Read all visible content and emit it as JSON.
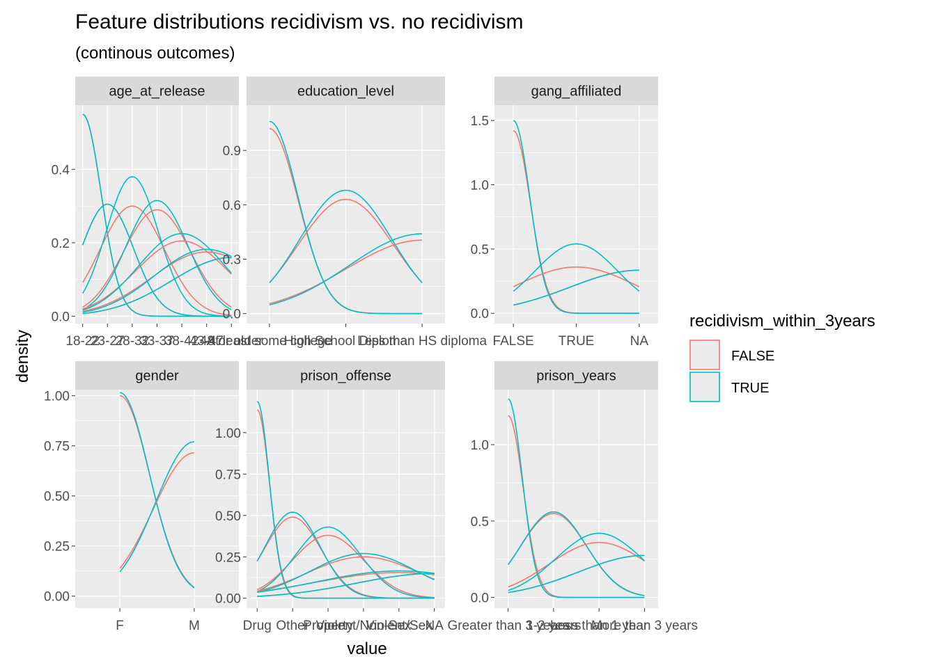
{
  "title": "Feature distributions recidivism vs. no recidivism",
  "subtitle": "(continous outcomes)",
  "xlabel": "value",
  "ylabel": "density",
  "legend": {
    "title": "recidivism_within_3years",
    "entries": [
      {
        "label": "FALSE",
        "color": "#F8766D"
      },
      {
        "label": "TRUE",
        "color": "#00BFC4"
      }
    ],
    "placement": "right"
  },
  "colors": {
    "panel_bg": "#EBEBEB",
    "grid": "#FFFFFF",
    "strip_bg": "#D9D9D9",
    "FALSE": "#F8766D",
    "TRUE": "#00BFC4"
  },
  "chart_data": [
    {
      "type": "line",
      "panel": "age_at_release",
      "categories": [
        "18-22",
        "23-27",
        "28-32",
        "33-37",
        "38-42",
        "43-47",
        "48 or older"
      ],
      "ylim": [
        -0.02,
        0.575
      ],
      "yticks": [
        "0.0",
        "0.2",
        "0.4"
      ],
      "ytick_values": [
        0,
        0.2,
        0.4
      ],
      "x_range": [
        1,
        7
      ],
      "series": [
        {
          "group": "FALSE",
          "mean": 1.0,
          "sd": 0.75,
          "height": 0.55
        },
        {
          "group": "TRUE",
          "mean": 1.0,
          "sd": 0.75,
          "height": 0.55
        },
        {
          "group": "FALSE",
          "mean": 2.0,
          "sd": 1.05,
          "height": 0.305
        },
        {
          "group": "TRUE",
          "mean": 2.0,
          "sd": 1.05,
          "height": 0.305
        },
        {
          "group": "FALSE",
          "mean": 3.0,
          "sd": 1.3,
          "height": 0.3
        },
        {
          "group": "TRUE",
          "mean": 3.0,
          "sd": 1.05,
          "height": 0.38
        },
        {
          "group": "FALSE",
          "mean": 4.0,
          "sd": 1.35,
          "height": 0.29
        },
        {
          "group": "TRUE",
          "mean": 4.0,
          "sd": 1.25,
          "height": 0.315
        },
        {
          "group": "FALSE",
          "mean": 5.0,
          "sd": 1.85,
          "height": 0.205
        },
        {
          "group": "TRUE",
          "mean": 5.0,
          "sd": 1.75,
          "height": 0.225
        },
        {
          "group": "FALSE",
          "mean": 6.0,
          "sd": 2.2,
          "height": 0.175
        },
        {
          "group": "TRUE",
          "mean": 6.0,
          "sd": 2.1,
          "height": 0.182
        },
        {
          "group": "FALSE",
          "mean": 7.0,
          "sd": 2.4,
          "height": 0.16
        },
        {
          "group": "TRUE",
          "mean": 7.0,
          "sd": 2.4,
          "height": 0.16
        }
      ]
    },
    {
      "type": "line",
      "panel": "education_level",
      "categories": [
        "At least some college",
        "High School Diploma",
        "Less than HS diploma"
      ],
      "ylim": [
        -0.055,
        1.15
      ],
      "yticks": [
        "0.0",
        "0.3",
        "0.6",
        "0.9"
      ],
      "ytick_values": [
        0,
        0.3,
        0.6,
        0.9
      ],
      "x_range": [
        1,
        3
      ],
      "series": [
        {
          "group": "FALSE",
          "mean": 1.0,
          "sd": 0.38,
          "height": 1.02
        },
        {
          "group": "TRUE",
          "mean": 1.0,
          "sd": 0.375,
          "height": 1.06
        },
        {
          "group": "FALSE",
          "mean": 2.0,
          "sd": 0.62,
          "height": 0.63
        },
        {
          "group": "TRUE",
          "mean": 2.0,
          "sd": 0.6,
          "height": 0.68
        },
        {
          "group": "FALSE",
          "mean": 3.0,
          "sd": 1.0,
          "height": 0.405
        },
        {
          "group": "TRUE",
          "mean": 3.0,
          "sd": 0.95,
          "height": 0.44
        }
      ]
    },
    {
      "type": "line",
      "panel": "gang_affiliated",
      "categories": [
        "FALSE",
        "TRUE",
        "NA"
      ],
      "ylim": [
        -0.08,
        1.62
      ],
      "yticks": [
        "0.0",
        "0.5",
        "1.0",
        "1.5"
      ],
      "ytick_values": [
        0,
        0.5,
        1.0,
        1.5
      ],
      "x_range": [
        1,
        3
      ],
      "series": [
        {
          "group": "FALSE",
          "mean": 1.0,
          "sd": 0.27,
          "height": 1.42
        },
        {
          "group": "TRUE",
          "mean": 1.0,
          "sd": 0.26,
          "height": 1.5
        },
        {
          "group": "FALSE",
          "mean": 2.0,
          "sd": 0.95,
          "height": 0.36
        },
        {
          "group": "TRUE",
          "mean": 2.0,
          "sd": 0.66,
          "height": 0.54
        },
        {
          "group": "FALSE",
          "mean": 3.0,
          "sd": 1.1,
          "height": 0.335
        },
        {
          "group": "TRUE",
          "mean": 3.0,
          "sd": 1.1,
          "height": 0.335
        }
      ]
    },
    {
      "type": "line",
      "panel": "gender",
      "categories": [
        "F",
        "M"
      ],
      "ylim": [
        -0.06,
        1.03
      ],
      "yticks": [
        "0.00",
        "0.25",
        "0.50",
        "0.75",
        "1.00"
      ],
      "ytick_values": [
        0,
        0.25,
        0.5,
        0.75,
        1.0
      ],
      "x_range": [
        1,
        2
      ],
      "series": [
        {
          "group": "FALSE",
          "mean": 1.0,
          "sd": 0.4,
          "height": 1.0
        },
        {
          "group": "TRUE",
          "mean": 1.0,
          "sd": 0.395,
          "height": 1.015
        },
        {
          "group": "FALSE",
          "mean": 2.0,
          "sd": 0.552,
          "height": 0.715
        },
        {
          "group": "TRUE",
          "mean": 2.0,
          "sd": 0.52,
          "height": 0.77
        }
      ]
    },
    {
      "type": "line",
      "panel": "prison_offense",
      "categories": [
        "Drug",
        "Other",
        "Property",
        "Violent/Non-Sex",
        "Violent/Sex",
        "NA"
      ],
      "ylim": [
        -0.06,
        1.26
      ],
      "yticks": [
        "0.00",
        "0.25",
        "0.50",
        "0.75",
        "1.00"
      ],
      "ytick_values": [
        0,
        0.25,
        0.5,
        0.75,
        1.0
      ],
      "x_range": [
        1,
        6
      ],
      "series": [
        {
          "group": "FALSE",
          "mean": 1.0,
          "sd": 0.35,
          "height": 1.14
        },
        {
          "group": "TRUE",
          "mean": 1.0,
          "sd": 0.34,
          "height": 1.19
        },
        {
          "group": "FALSE",
          "mean": 2.0,
          "sd": 0.8,
          "height": 0.49
        },
        {
          "group": "TRUE",
          "mean": 2.0,
          "sd": 0.77,
          "height": 0.52
        },
        {
          "group": "FALSE",
          "mean": 3.0,
          "sd": 1.0,
          "height": 0.38
        },
        {
          "group": "TRUE",
          "mean": 3.0,
          "sd": 0.92,
          "height": 0.43
        },
        {
          "group": "FALSE",
          "mean": 4.0,
          "sd": 1.6,
          "height": 0.25
        },
        {
          "group": "TRUE",
          "mean": 4.0,
          "sd": 1.5,
          "height": 0.27
        },
        {
          "group": "FALSE",
          "mean": 5.0,
          "sd": 2.4,
          "height": 0.155
        },
        {
          "group": "TRUE",
          "mean": 5.0,
          "sd": 2.3,
          "height": 0.165
        },
        {
          "group": "FALSE",
          "mean": 6.0,
          "sd": 2.2,
          "height": 0.15
        },
        {
          "group": "TRUE",
          "mean": 6.0,
          "sd": 2.2,
          "height": 0.15
        }
      ]
    },
    {
      "type": "line",
      "panel": "prison_years",
      "categories": [
        "Greater than 3 years",
        "1-2 years",
        "Less than 1 year",
        "More than 3 years"
      ],
      "ylim": [
        -0.07,
        1.36
      ],
      "yticks": [
        "0.0",
        "0.5",
        "1.0"
      ],
      "ytick_values": [
        0,
        0.5,
        1.0
      ],
      "x_range": [
        1,
        4
      ],
      "series": [
        {
          "group": "FALSE",
          "mean": 1.0,
          "sd": 0.33,
          "height": 1.19
        },
        {
          "group": "TRUE",
          "mean": 1.0,
          "sd": 0.31,
          "height": 1.3
        },
        {
          "group": "FALSE",
          "mean": 2.0,
          "sd": 0.73,
          "height": 0.55
        },
        {
          "group": "TRUE",
          "mean": 2.0,
          "sd": 0.72,
          "height": 0.56
        },
        {
          "group": "FALSE",
          "mean": 3.0,
          "sd": 1.1,
          "height": 0.36
        },
        {
          "group": "TRUE",
          "mean": 3.0,
          "sd": 0.95,
          "height": 0.42
        },
        {
          "group": "FALSE",
          "mean": 4.0,
          "sd": 1.45,
          "height": 0.275
        },
        {
          "group": "TRUE",
          "mean": 4.0,
          "sd": 1.45,
          "height": 0.275
        }
      ]
    }
  ]
}
